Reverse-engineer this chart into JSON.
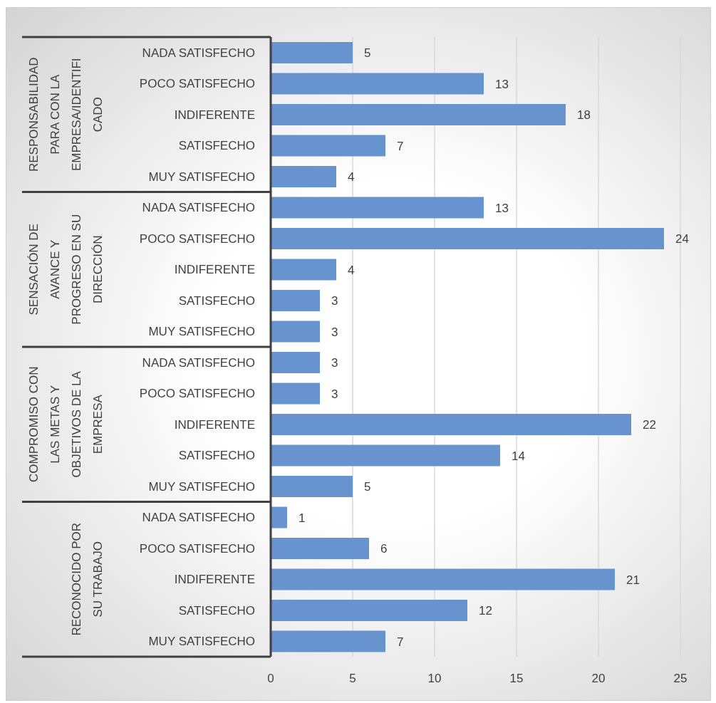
{
  "chart_data": {
    "type": "bar",
    "orientation": "horizontal",
    "categories": [
      "NADA SATISFECHO",
      "POCO SATISFECHO",
      "INDIFERENTE",
      "SATISFECHO",
      "MUY SATISFECHO",
      "NADA SATISFECHO",
      "POCO SATISFECHO",
      "INDIFERENTE",
      "SATISFECHO",
      "MUY SATISFECHO",
      "NADA SATISFECHO",
      "POCO SATISFECHO",
      "INDIFERENTE",
      "SATISFECHO",
      "MUY SATISFECHO",
      "NADA SATISFECHO",
      "POCO SATISFECHO",
      "INDIFERENTE",
      "SATISFECHO",
      "MUY SATISFECHO"
    ],
    "values": [
      5,
      13,
      18,
      7,
      4,
      13,
      24,
      4,
      3,
      3,
      3,
      3,
      22,
      14,
      5,
      1,
      6,
      21,
      12,
      7
    ],
    "color": "#6793cf",
    "xlim": [
      0,
      25
    ],
    "xticks": [
      0,
      5,
      10,
      15,
      20,
      25
    ],
    "grid": "x",
    "data_labels": true,
    "annotations": [
      "RESPONSABILIDAD PARA CON LA EMPRESA/IDENTIFICADO",
      "SENSACIÓN DE AVANCE Y PROGRESO EN SU DIRECCIÓN",
      "COMPROMISO CON LAS METAS Y OBJETIVOS DE LA EMPRESA",
      "RECONOCIDO POR SU TRABAJO"
    ]
  }
}
